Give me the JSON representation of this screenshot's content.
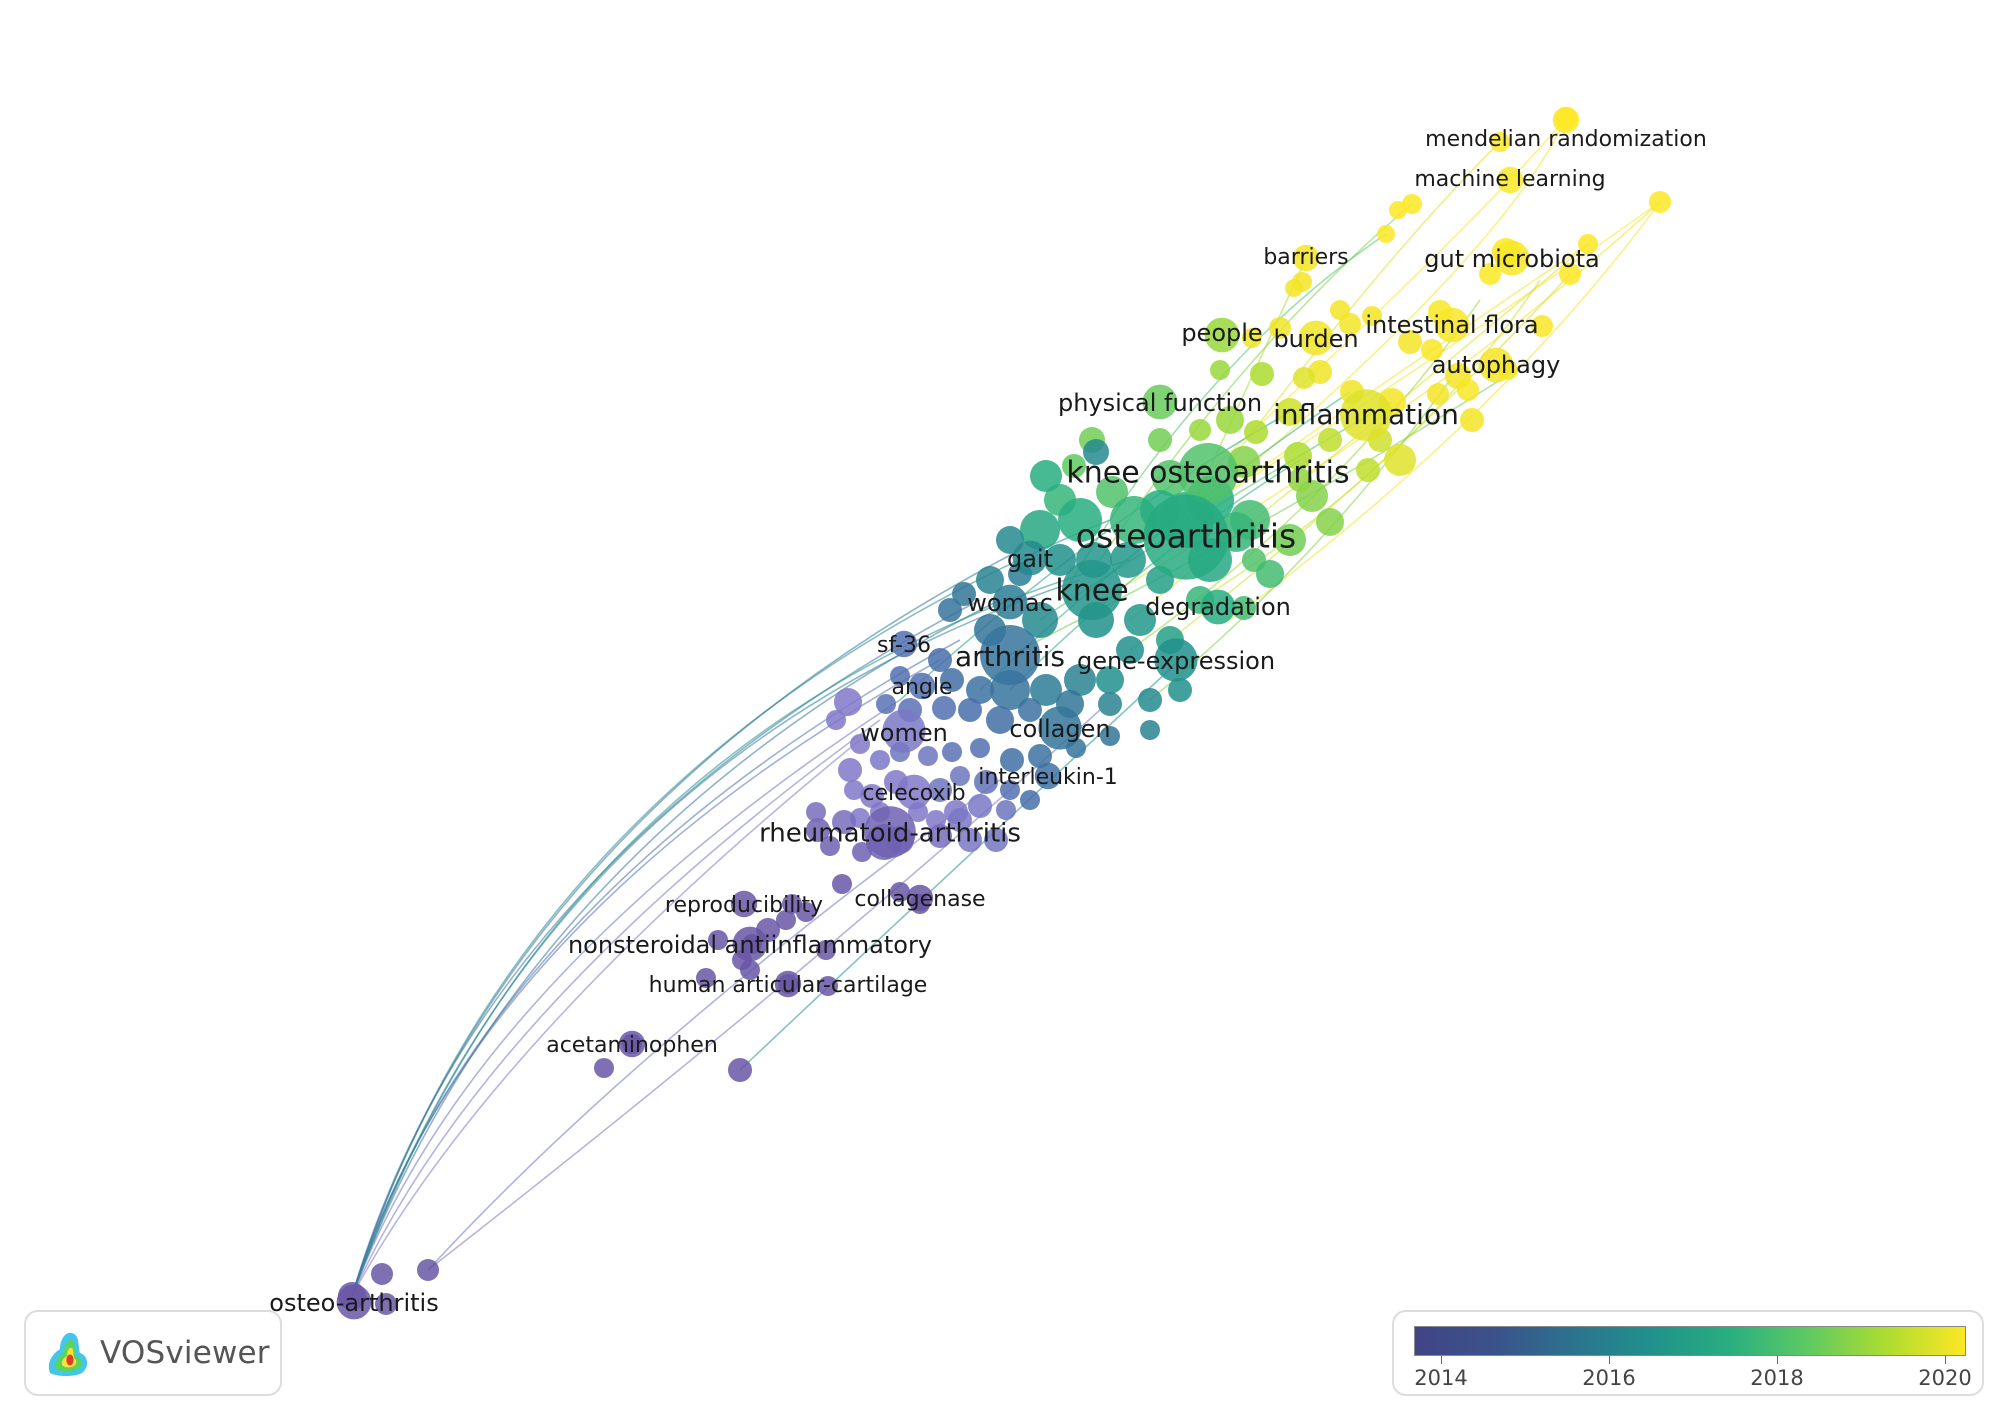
{
  "app": {
    "name": "VOSviewer"
  },
  "colors": {
    "y2014": "#414487",
    "y2016": "#2a788e",
    "y2018": "#7ad151",
    "y2020": "#fde725",
    "purple": "#8079c8"
  },
  "legend": {
    "ticks": [
      "2014",
      "2016",
      "2018",
      "2020"
    ]
  },
  "keywords": [
    {
      "label": "mendelian randomization",
      "year": 2021.0,
      "size": 1
    },
    {
      "label": "machine learning",
      "year": 2021.0,
      "size": 1
    },
    {
      "label": "barriers",
      "year": 2020.3,
      "size": 1
    },
    {
      "label": "gut microbiota",
      "year": 2020.6,
      "size": 2
    },
    {
      "label": "people",
      "year": 2019.0,
      "size": 2
    },
    {
      "label": "burden",
      "year": 2020.0,
      "size": 2
    },
    {
      "label": "intestinal flora",
      "year": 2020.6,
      "size": 2
    },
    {
      "label": "autophagy",
      "year": 2020.4,
      "size": 2
    },
    {
      "label": "physical function",
      "year": 2018.5,
      "size": 2
    },
    {
      "label": "inflammation",
      "year": 2019.8,
      "size": 4
    },
    {
      "label": "knee osteoarthritis",
      "year": 2018.2,
      "size": 5
    },
    {
      "label": "osteoarthritis",
      "year": 2017.5,
      "size": 8
    },
    {
      "label": "gait",
      "year": 2016.6,
      "size": 2
    },
    {
      "label": "womac",
      "year": 2016.2,
      "size": 2
    },
    {
      "label": "knee",
      "year": 2016.9,
      "size": 5
    },
    {
      "label": "degradation",
      "year": 2017.6,
      "size": 2
    },
    {
      "label": "sf-36",
      "year": 2015.0,
      "size": 1
    },
    {
      "label": "arthritis",
      "year": 2015.8,
      "size": 5
    },
    {
      "label": "gene-expression",
      "year": 2016.8,
      "size": 3
    },
    {
      "label": "angle",
      "year": 2015.0,
      "size": 1
    },
    {
      "label": "women",
      "year": 2014.4,
      "size": 3
    },
    {
      "label": "collagen",
      "year": 2015.9,
      "size": 3
    },
    {
      "label": "interleukin-1",
      "year": 2015.5,
      "size": 1
    },
    {
      "label": "celecoxib",
      "year": 2014.3,
      "size": 2
    },
    {
      "label": "rheumatoid-arthritis",
      "year": 2014.1,
      "size": 4
    },
    {
      "label": "reproducibility",
      "year": 2014.0,
      "size": 1
    },
    {
      "label": "collagenase",
      "year": 2014.0,
      "size": 1
    },
    {
      "label": "nonsteroidal antiinflammatory",
      "year": 2014.0,
      "size": 2
    },
    {
      "label": "human articular-cartilage",
      "year": 2014.0,
      "size": 1
    },
    {
      "label": "acetaminophen",
      "year": 2014.0,
      "size": 1
    },
    {
      "label": "osteo-arthritis",
      "year": 2014.0,
      "size": 2
    }
  ]
}
